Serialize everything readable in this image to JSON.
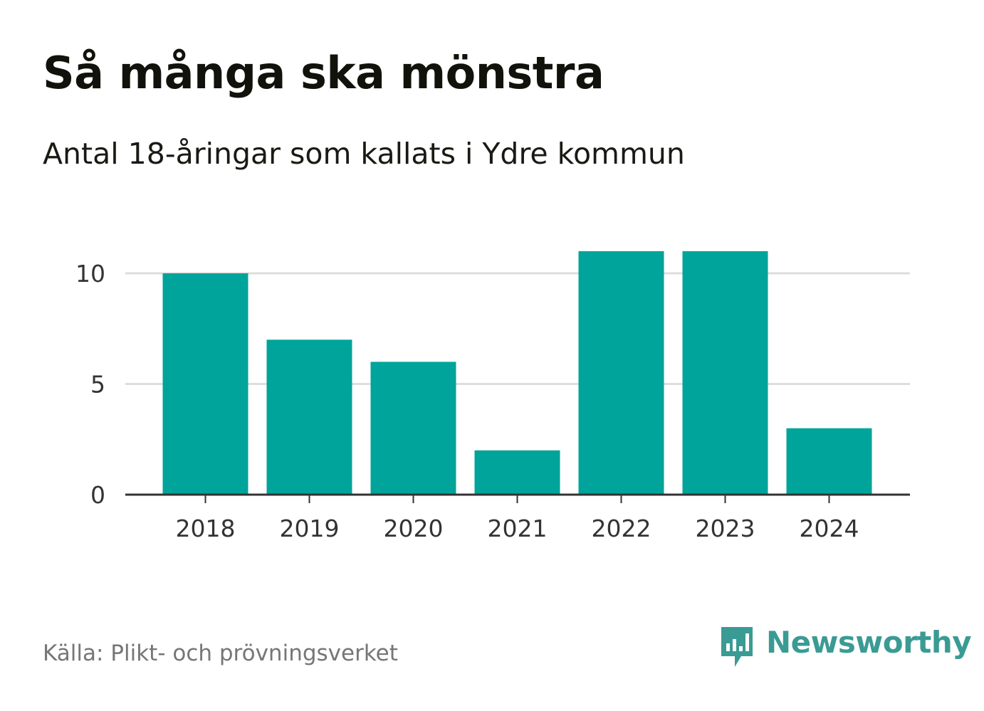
{
  "header": {
    "title": "Så många ska mönstra",
    "subtitle": "Antal 18-åringar som kallats i Ydre kommun"
  },
  "chart_data": {
    "type": "bar",
    "title": "Så många ska mönstra",
    "subtitle": "Antal 18-åringar som kallats i Ydre kommun",
    "categories": [
      "2018",
      "2019",
      "2020",
      "2021",
      "2022",
      "2023",
      "2024"
    ],
    "values": [
      10,
      7,
      6,
      2,
      11,
      11,
      3
    ],
    "xlabel": "",
    "ylabel": "",
    "ylim": [
      0,
      11
    ],
    "yticks": [
      0,
      5,
      10
    ],
    "ytick_labels": [
      "0",
      "5",
      "10"
    ],
    "grid": true,
    "bar_color": "#00a49a",
    "grid_color": "#dddddd",
    "axis_color": "#333333"
  },
  "footer": {
    "source": "Källa: Plikt- och prövningsverket",
    "brand": "Newsworthy",
    "brand_icon": "newsworthy-logo-icon",
    "brand_color": "#3a9b94"
  }
}
